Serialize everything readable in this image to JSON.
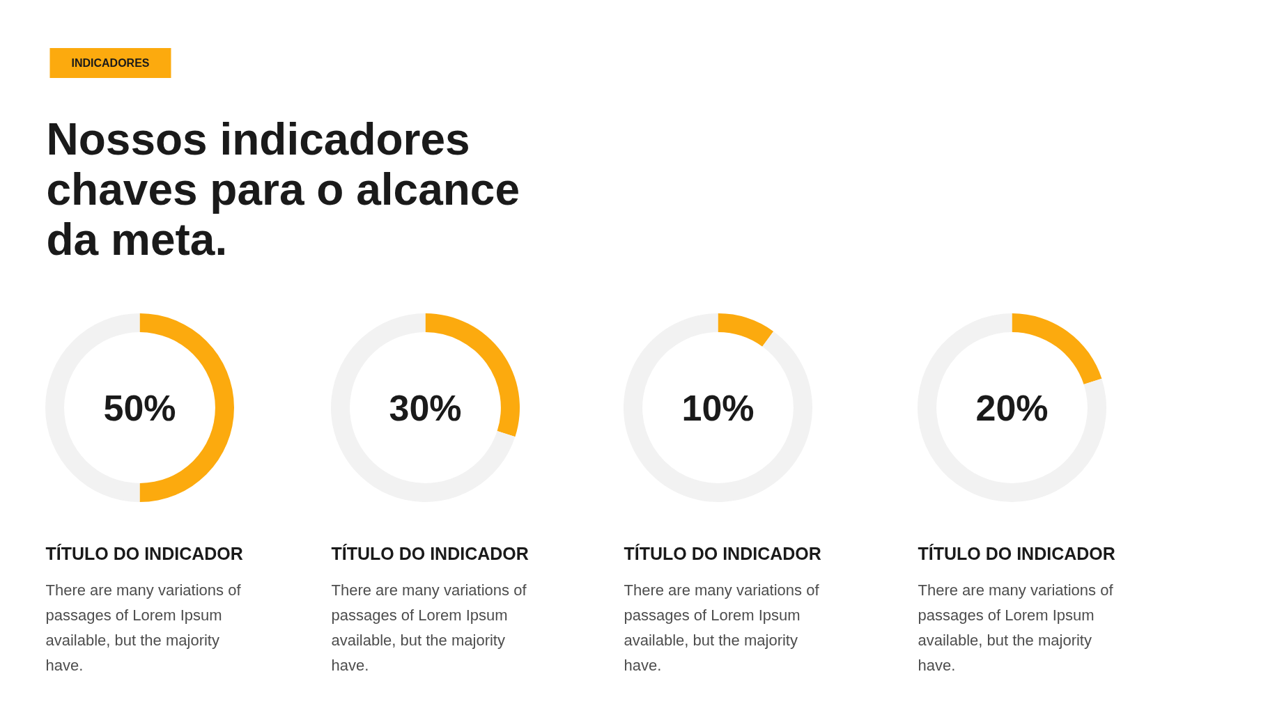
{
  "chart_data": [
    {
      "type": "other",
      "title": "Nossos indicadores chaves para o alcance da meta.",
      "annotations": [
        "INDICADORES"
      ]
    },
    {
      "type": "donut",
      "title": "TÍTULO DO INDICADOR",
      "subtitle": "There are many variations of passages of Lorem Ipsum available, but the majority have.",
      "categories": [
        null,
        null
      ],
      "values": [
        50,
        50
      ],
      "colors": [
        "#fcaa0e",
        "#f2f2f2"
      ],
      "annotations": [
        "50%"
      ]
    },
    {
      "type": "donut",
      "title": "TÍTULO DO INDICADOR",
      "subtitle": "There are many variations of passages of Lorem Ipsum available, but the majority have.",
      "categories": [
        null,
        null
      ],
      "values": [
        30,
        70
      ],
      "colors": [
        "#fcaa0e",
        "#f2f2f2"
      ],
      "annotations": [
        "30%"
      ]
    },
    {
      "type": "donut",
      "title": "TÍTULO DO INDICADOR",
      "subtitle": "There are many variations of passages of Lorem Ipsum available, but the majority have.",
      "categories": [
        null,
        null
      ],
      "values": [
        10,
        90
      ],
      "colors": [
        "#fcaa0e",
        "#f2f2f2"
      ],
      "annotations": [
        "10%"
      ]
    },
    {
      "type": "donut",
      "title": "TÍTULO DO INDICADOR",
      "subtitle": "There are many variations of passages of Lorem Ipsum available, but the majority have.",
      "categories": [
        null,
        null
      ],
      "values": [
        20,
        80
      ],
      "colors": [
        "#fcaa0e",
        "#f2f2f2"
      ],
      "annotations": [
        "20%"
      ]
    }
  ]
}
